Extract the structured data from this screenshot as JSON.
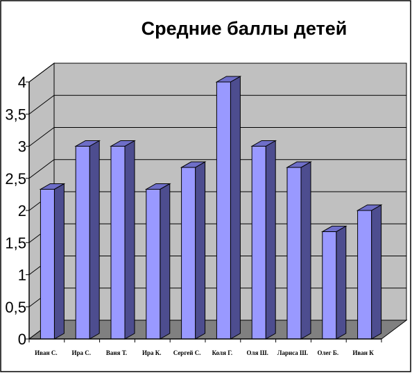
{
  "chart_data": {
    "type": "bar",
    "title": "Средние баллы детей",
    "xlabel": "",
    "ylabel": "",
    "categories": [
      "Иван С.",
      "Ира С.",
      "Ваня Т.",
      "Ира К.",
      "Сергей С.",
      "Коля Г.",
      "Оля Ш.",
      "Лариса Ш.",
      "Олег Б.",
      "Иван К"
    ],
    "values": [
      2.33,
      3.0,
      3.0,
      2.33,
      2.67,
      4.0,
      3.0,
      2.67,
      1.67,
      2.0
    ],
    "ylim": [
      0,
      4
    ],
    "yticks": [
      0,
      0.5,
      1,
      1.5,
      2,
      2.5,
      3,
      3.5,
      4
    ],
    "ytick_labels": [
      "0",
      "0,5",
      "1",
      "1,5",
      "2",
      "2,5",
      "3",
      "3,5",
      "4"
    ],
    "grid": true,
    "legend": "none",
    "colors": {
      "bar_front": "#9999FF",
      "bar_side": "#4D4D8F",
      "bar_top": "#6E6EC8",
      "wall": "#C0C0C0",
      "floor": "#808080"
    }
  }
}
